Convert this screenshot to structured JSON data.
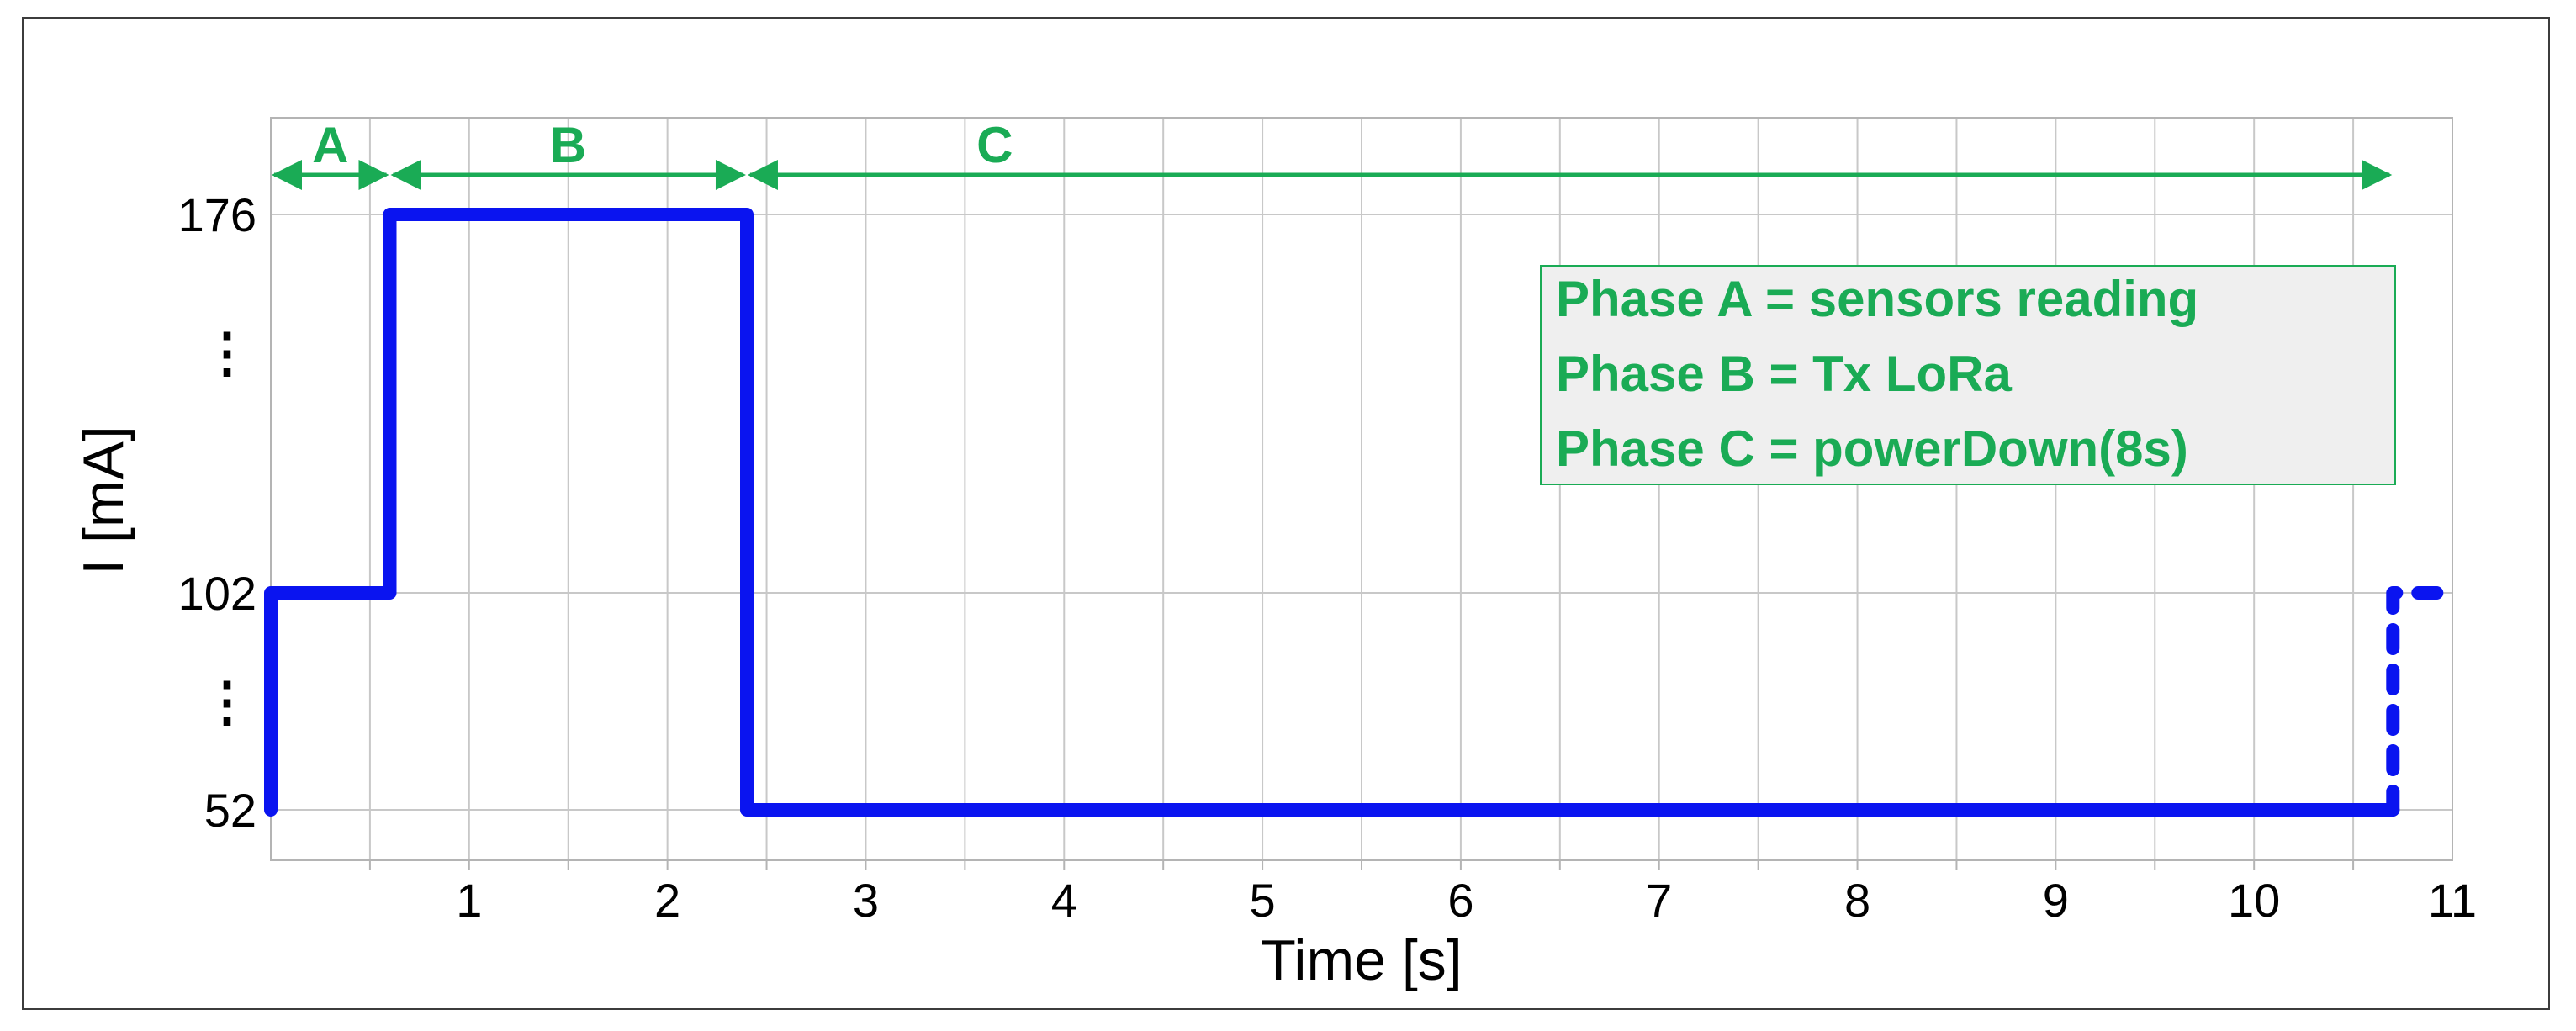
{
  "chart_data": {
    "type": "line",
    "title": "",
    "xlabel": "Time [s]",
    "ylabel": "I [mA]",
    "xlim": [
      0,
      11
    ],
    "x_ticks": [
      "1",
      "2",
      "3",
      "4",
      "5",
      "6",
      "7",
      "8",
      "9",
      "10",
      "11"
    ],
    "y_ticks": [
      {
        "value": 176,
        "label": "176"
      },
      {
        "value": 102,
        "label": "102"
      },
      {
        "value": 52,
        "label": "52"
      }
    ],
    "y_breaks": [
      "⋮",
      "⋮"
    ],
    "grid": true,
    "series": [
      {
        "style": "solid",
        "points": [
          [
            0,
            52
          ],
          [
            0,
            102
          ],
          [
            0.6,
            102
          ],
          [
            0.6,
            176
          ],
          [
            2.4,
            176
          ],
          [
            2.4,
            52
          ],
          [
            10.7,
            52
          ]
        ]
      },
      {
        "style": "dashed",
        "points": [
          [
            10.7,
            52
          ],
          [
            10.7,
            102
          ],
          [
            11,
            102
          ]
        ]
      }
    ],
    "phases": [
      {
        "label": "A",
        "start": 0,
        "end": 0.6
      },
      {
        "label": "B",
        "start": 0.6,
        "end": 2.4
      },
      {
        "label": "C",
        "start": 2.4,
        "end": 10.7
      }
    ],
    "legend": {
      "placement": "top-right",
      "lines": [
        "Phase A = sensors reading",
        "Phase B = Tx LoRa",
        "Phase C = powerDown(8s)"
      ]
    },
    "colors": {
      "series": "#0a14f0",
      "phase": "#1aab55",
      "grid": "#c8c8c8",
      "legend_bg": "#efefef"
    }
  }
}
